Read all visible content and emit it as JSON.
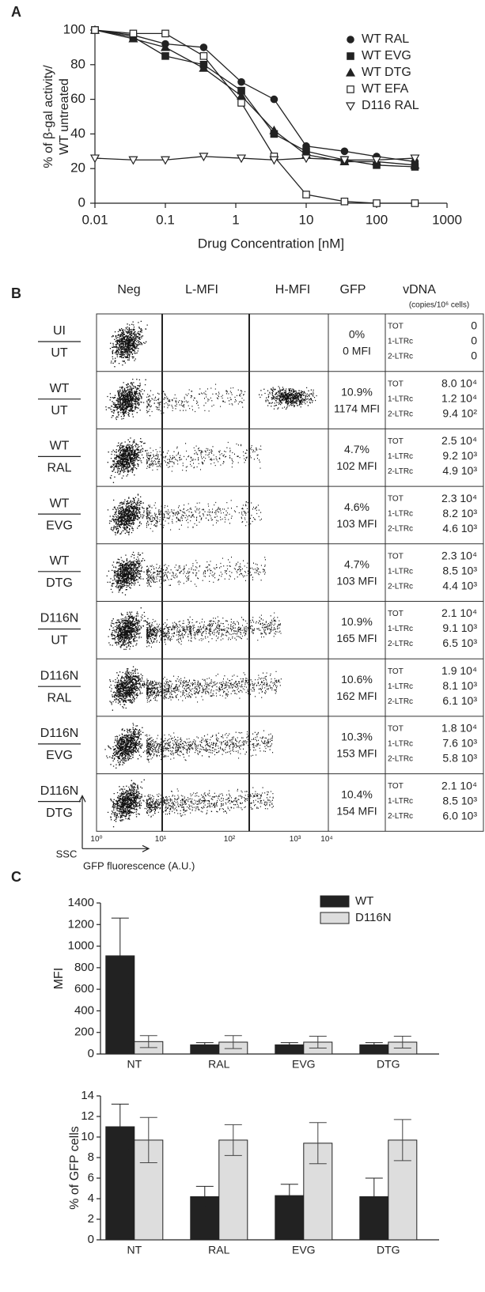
{
  "panel_labels": [
    "A",
    "B",
    "C"
  ],
  "chart_data": [
    {
      "type": "line",
      "ylabel": [
        "% of β-gal activity/",
        "WT untreated"
      ],
      "xlabel": "Drug Concentration [nM]",
      "xscale": "log",
      "x": [
        0.01,
        0.035,
        0.1,
        0.35,
        1.2,
        3.5,
        10,
        35,
        100,
        350
      ],
      "xlim": [
        0.01,
        1000
      ],
      "xticks": [
        0.01,
        0.1,
        1,
        10,
        100,
        1000
      ],
      "ylim": [
        0,
        100
      ],
      "yticks": [
        0,
        20,
        40,
        60,
        80,
        100
      ],
      "legend": "upper right",
      "series": [
        {
          "name": "WT RAL",
          "color": "#222222",
          "marker": "circle",
          "values": [
            100,
            97,
            92,
            90,
            70,
            60,
            33,
            30,
            27,
            24
          ]
        },
        {
          "name": "WT EVG",
          "color": "#222222",
          "marker": "square",
          "values": [
            100,
            96,
            85,
            80,
            65,
            40,
            30,
            25,
            22,
            21
          ]
        },
        {
          "name": "WT DTG",
          "color": "#222222",
          "marker": "triangle",
          "values": [
            100,
            95,
            90,
            78,
            62,
            42,
            28,
            24,
            24,
            22
          ]
        },
        {
          "name": "WT EFA",
          "color": "#222222",
          "marker": "open-square",
          "values": [
            100,
            98,
            98,
            85,
            58,
            27,
            5,
            1,
            0,
            0
          ]
        },
        {
          "name": "D116 RAL",
          "color": "#222222",
          "marker": "open-triangle-down",
          "values": [
            26,
            25,
            25,
            27,
            26,
            25,
            26,
            25,
            25,
            26
          ]
        }
      ]
    },
    {
      "type": "bar",
      "ylabel": "MFI",
      "categories": [
        "NT",
        "RAL",
        "EVG",
        "DTG"
      ],
      "ylim": [
        0,
        1400
      ],
      "yticks": [
        0,
        200,
        400,
        600,
        800,
        1000,
        1200,
        1400
      ],
      "legend": "upper right",
      "series": [
        {
          "name": "WT",
          "color": "#222222",
          "values": [
            910,
            85,
            85,
            85
          ],
          "errors": [
            350,
            20,
            20,
            20
          ]
        },
        {
          "name": "D116N",
          "color": "#dddddd",
          "values": [
            115,
            110,
            110,
            110
          ],
          "errors": [
            55,
            60,
            55,
            55
          ]
        }
      ]
    },
    {
      "type": "bar",
      "ylabel": "% of GFP cells",
      "categories": [
        "NT",
        "RAL",
        "EVG",
        "DTG"
      ],
      "ylim": [
        0,
        14
      ],
      "yticks": [
        0,
        2,
        4,
        6,
        8,
        10,
        12,
        14
      ],
      "series": [
        {
          "color": "#222222",
          "values": [
            11,
            4.2,
            4.3,
            4.2
          ],
          "errors": [
            2.2,
            1.0,
            1.1,
            1.8
          ]
        },
        {
          "color": "#dddddd",
          "values": [
            9.7,
            9.7,
            9.4,
            9.7
          ],
          "errors": [
            2.2,
            1.5,
            2.0,
            2.0
          ]
        }
      ]
    }
  ],
  "flow_table": {
    "headers": [
      "Neg",
      "L-MFI",
      "H-MFI",
      "GFP",
      "vDNA"
    ],
    "vdna_unit": "(copies/10⁶ cells)",
    "vdna_labels": [
      "TOT",
      "1-LTRc",
      "2-LTRc"
    ],
    "axis_ticks": [
      "10⁰",
      "10¹",
      "10²",
      "10³",
      "10⁴"
    ],
    "y_axis": "SSC",
    "x_axis": "GFP fluorescence (A.U.)",
    "rows": [
      {
        "top": "UI",
        "bottom": "UT",
        "gfp": "0%",
        "mfi": "0 MFI",
        "vdna": [
          "0",
          "0",
          "0"
        ]
      },
      {
        "top": "WT",
        "bottom": "UT",
        "gfp": "10.9%",
        "mfi": "1174 MFI",
        "vdna": [
          "8.0 10⁴",
          "1.2 10⁴",
          "9.4 10²"
        ]
      },
      {
        "top": "WT",
        "bottom": "RAL",
        "gfp": "4.7%",
        "mfi": "102 MFI",
        "vdna": [
          "2.5 10⁴",
          "9.2 10³",
          "4.9 10³"
        ]
      },
      {
        "top": "WT",
        "bottom": "EVG",
        "gfp": "4.6%",
        "mfi": "103 MFI",
        "vdna": [
          "2.3 10⁴",
          "8.2 10³",
          "4.6 10³"
        ]
      },
      {
        "top": "WT",
        "bottom": "DTG",
        "gfp": "4.7%",
        "mfi": "103 MFI",
        "vdna": [
          "2.3 10⁴",
          "8.5 10³",
          "4.4 10³"
        ]
      },
      {
        "top": "D116N",
        "bottom": "UT",
        "gfp": "10.9%",
        "mfi": "165 MFI",
        "vdna": [
          "2.1 10⁴",
          "9.1 10³",
          "6.5 10³"
        ]
      },
      {
        "top": "D116N",
        "bottom": "RAL",
        "gfp": "10.6%",
        "mfi": "162 MFI",
        "vdna": [
          "1.9 10⁴",
          "8.1 10³",
          "6.1 10³"
        ]
      },
      {
        "top": "D116N",
        "bottom": "EVG",
        "gfp": "10.3%",
        "mfi": "153 MFI",
        "vdna": [
          "1.8 10⁴",
          "7.6 10³",
          "5.8 10³"
        ]
      },
      {
        "top": "D116N",
        "bottom": "DTG",
        "gfp": "10.4%",
        "mfi": "154 MFI",
        "vdna": [
          "2.1 10⁴",
          "8.5 10³",
          "6.0 10³"
        ]
      }
    ]
  }
}
